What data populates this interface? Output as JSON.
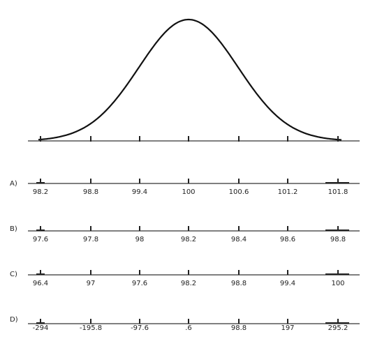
{
  "options": [
    {
      "letter": "A)",
      "ticks": [
        "98.2",
        "98.8",
        "99.4",
        "100",
        "100.6",
        "101.2",
        "101.8"
      ]
    },
    {
      "letter": "B)",
      "ticks": [
        "97.6",
        "97.8",
        "98",
        "98.2",
        "98.4",
        "98.6",
        "98.8"
      ]
    },
    {
      "letter": "C)",
      "ticks": [
        "96.4",
        "97",
        "97.6",
        "98.2",
        "98.8",
        "99.4",
        "100"
      ]
    },
    {
      "letter": "D)",
      "ticks": [
        "-294",
        "-195.8",
        "-97.6",
        ".6",
        "98.8",
        "197",
        "295.2"
      ]
    }
  ]
}
